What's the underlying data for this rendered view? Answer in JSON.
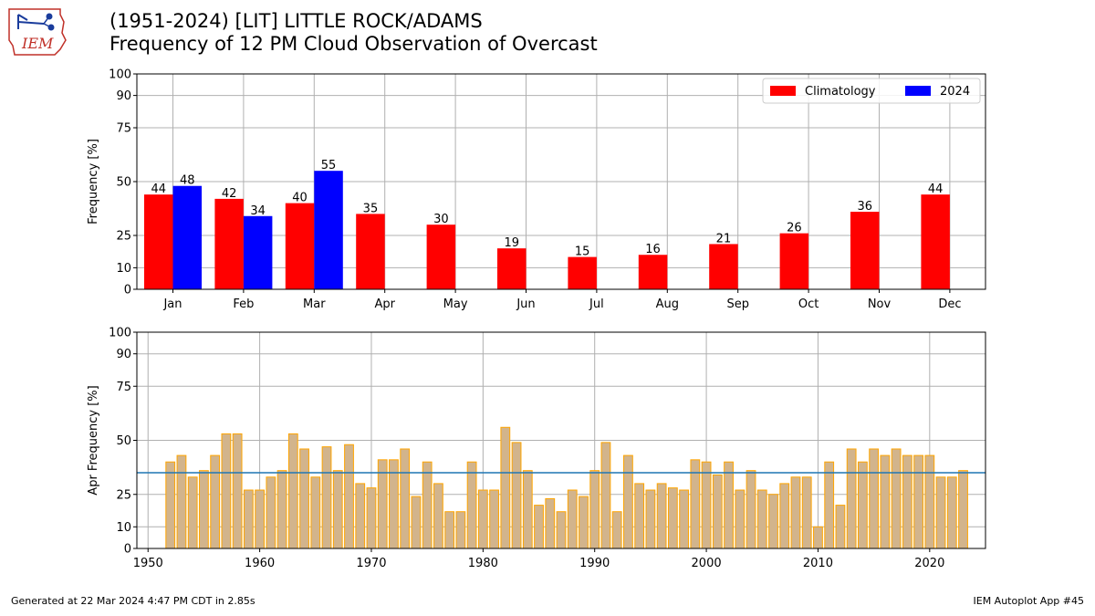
{
  "header": {
    "title_line1": "(1951-2024) [LIT] LITTLE ROCK/ADAMS",
    "title_line2": "Frequency of 12 PM Cloud Observation of Overcast",
    "logo_text": "IEM"
  },
  "footer": {
    "left": "Generated at 22 Mar 2024 4:47 PM CDT in 2.85s",
    "right": "IEM Autoplot App #45"
  },
  "colors": {
    "climatology": "#ff0000",
    "year": "#0000ff",
    "annual_fill": "#d2b48c",
    "annual_edge": "#ffa500",
    "mean_line": "#1f77b4",
    "grid": "#b0b0b0"
  },
  "chart_data": [
    {
      "type": "bar",
      "ylabel": "Frequency [%]",
      "ylim": [
        0,
        100
      ],
      "yticks": [
        0,
        10,
        25,
        50,
        75,
        90,
        100
      ],
      "grid": true,
      "legend_position": "top-right",
      "categories": [
        "Jan",
        "Feb",
        "Mar",
        "Apr",
        "May",
        "Jun",
        "Jul",
        "Aug",
        "Sep",
        "Oct",
        "Nov",
        "Dec"
      ],
      "series": [
        {
          "name": "Climatology",
          "values": [
            44,
            42,
            40,
            35,
            30,
            19,
            15,
            16,
            21,
            26,
            36,
            44
          ]
        },
        {
          "name": "2024",
          "values": [
            48,
            34,
            55,
            null,
            null,
            null,
            null,
            null,
            null,
            null,
            null,
            null
          ]
        }
      ]
    },
    {
      "type": "bar",
      "ylabel": "Apr Frequency [%]",
      "ylim": [
        0,
        100
      ],
      "yticks": [
        0,
        10,
        25,
        50,
        75,
        90,
        100
      ],
      "xlim": [
        1949,
        2025
      ],
      "xticks": [
        1950,
        1960,
        1970,
        1980,
        1990,
        2000,
        2010,
        2020
      ],
      "grid": true,
      "mean": 35,
      "x": [
        1952,
        1953,
        1954,
        1955,
        1956,
        1957,
        1958,
        1959,
        1960,
        1961,
        1962,
        1963,
        1964,
        1965,
        1966,
        1967,
        1968,
        1969,
        1970,
        1971,
        1972,
        1973,
        1974,
        1975,
        1976,
        1977,
        1978,
        1979,
        1980,
        1981,
        1982,
        1983,
        1984,
        1985,
        1986,
        1987,
        1988,
        1989,
        1990,
        1991,
        1992,
        1993,
        1994,
        1995,
        1996,
        1997,
        1998,
        1999,
        2000,
        2001,
        2002,
        2003,
        2004,
        2005,
        2006,
        2007,
        2008,
        2009,
        2010,
        2011,
        2012,
        2013,
        2014,
        2015,
        2016,
        2017,
        2018,
        2019,
        2020,
        2021,
        2022,
        2023
      ],
      "values": [
        40,
        43,
        33,
        36,
        43,
        53,
        53,
        27,
        27,
        33,
        36,
        53,
        46,
        33,
        47,
        36,
        48,
        30,
        28,
        41,
        41,
        46,
        24,
        40,
        30,
        17,
        17,
        40,
        27,
        27,
        56,
        49,
        36,
        20,
        23,
        17,
        27,
        24,
        36,
        49,
        17,
        43,
        30,
        27,
        30,
        28,
        27,
        41,
        40,
        34,
        40,
        27,
        36,
        27,
        25,
        30,
        33,
        33,
        10,
        40,
        20,
        46,
        40,
        46,
        43,
        46,
        43,
        43,
        43,
        33,
        33,
        36
      ]
    }
  ]
}
